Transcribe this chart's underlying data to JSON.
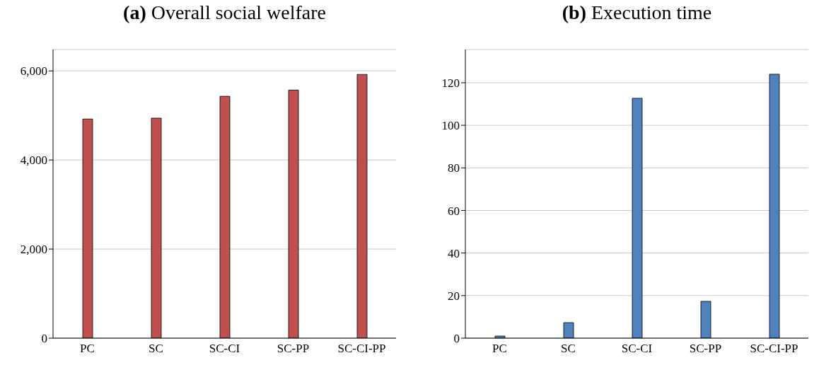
{
  "chart_data": [
    {
      "type": "bar",
      "title": "(a) Overall social welfare",
      "categories": [
        "PC",
        "SC",
        "SC-CI",
        "SC-PP",
        "SC-CI-PP"
      ],
      "values": [
        4920,
        4940,
        5430,
        5570,
        5920
      ],
      "color": "#c0504d",
      "ylim": [
        0,
        6480
      ],
      "yticks": [
        {
          "value": 0,
          "label": "0"
        },
        {
          "value": 2000,
          "label": "2,000"
        },
        {
          "value": 4000,
          "label": "4,000"
        },
        {
          "value": 6000,
          "label": "6,000"
        }
      ],
      "grid": "y"
    },
    {
      "type": "bar",
      "title": "(b) Execution time",
      "categories": [
        "PC",
        "SC",
        "SC-CI",
        "SC-PP",
        "SC-CI-PP"
      ],
      "values": [
        1,
        7.3,
        112.7,
        17.3,
        124
      ],
      "color": "#4f81bd",
      "ylim": [
        0,
        135.6
      ],
      "yticks": [
        0,
        20,
        40,
        60,
        80,
        100,
        120
      ],
      "grid": "y"
    }
  ]
}
